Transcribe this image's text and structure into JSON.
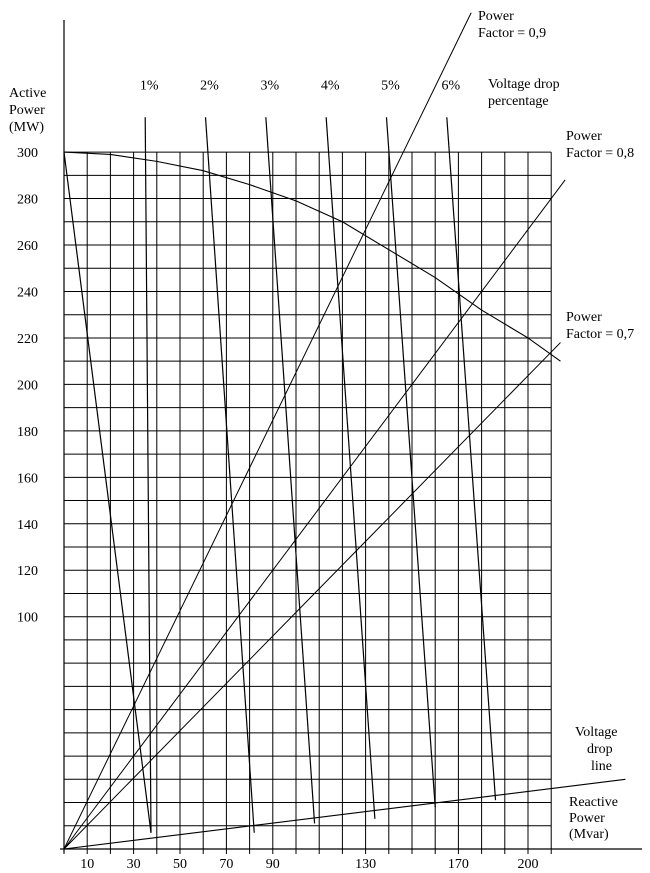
{
  "chart_data": {
    "type": "line",
    "title": "",
    "xlabel_lines": [
      "Reactive",
      "Power",
      "(Mvar)"
    ],
    "ylabel_lines": [
      "Active",
      "Power",
      "(MW)"
    ],
    "x_range": [
      0,
      210
    ],
    "y_range": [
      0,
      300
    ],
    "x_grid_step": 10,
    "y_grid_step": 10,
    "grid": true,
    "x_ticks": [
      10,
      30,
      50,
      70,
      90,
      130,
      170,
      200
    ],
    "y_ticks": [
      100,
      120,
      140,
      160,
      180,
      200,
      220,
      240,
      260,
      280,
      300
    ],
    "power_factor_lines": [
      {
        "label_lines": [
          "Power",
          "Factor = 0,9"
        ],
        "end": [
          175.5,
          360
        ]
      },
      {
        "label_lines": [
          "Power",
          "Factor = 0,8"
        ],
        "end": [
          216,
          288
        ]
      },
      {
        "label_lines": [
          "Power",
          "Factor = 0,7"
        ],
        "end": [
          214,
          218
        ]
      }
    ],
    "capability_curve": {
      "points": [
        [
          0,
          300
        ],
        [
          20,
          299
        ],
        [
          40,
          296
        ],
        [
          60,
          292
        ],
        [
          80,
          286
        ],
        [
          100,
          279
        ],
        [
          120,
          270
        ],
        [
          140,
          258
        ],
        [
          160,
          246
        ],
        [
          180,
          232
        ],
        [
          200,
          220
        ],
        [
          214,
          210
        ]
      ]
    },
    "voltage_drop_lines": {
      "label_lines": [
        "Voltage drop",
        "percentage"
      ],
      "items": [
        {
          "label": "1%",
          "top": [
            35,
            315
          ],
          "bottom": [
            37.5,
            7
          ]
        },
        {
          "label": "2%",
          "top": [
            61,
            315
          ],
          "bottom": [
            82,
            7
          ]
        },
        {
          "label": "3%",
          "top": [
            87,
            315
          ],
          "bottom": [
            108,
            11
          ]
        },
        {
          "label": "4%",
          "top": [
            113,
            315
          ],
          "bottom": [
            134,
            13
          ]
        },
        {
          "label": "5%",
          "top": [
            139,
            315
          ],
          "bottom": [
            160,
            18
          ]
        },
        {
          "label": "6%",
          "top": [
            165,
            315
          ],
          "bottom": [
            186,
            21
          ]
        }
      ],
      "first_line": {
        "top": [
          0,
          300
        ],
        "bottom": [
          37.5,
          7
        ]
      }
    },
    "voltage_drop_line": {
      "label_lines": [
        "Voltage",
        "drop",
        "line"
      ],
      "points": [
        [
          0,
          0
        ],
        [
          242,
          30
        ]
      ]
    }
  }
}
